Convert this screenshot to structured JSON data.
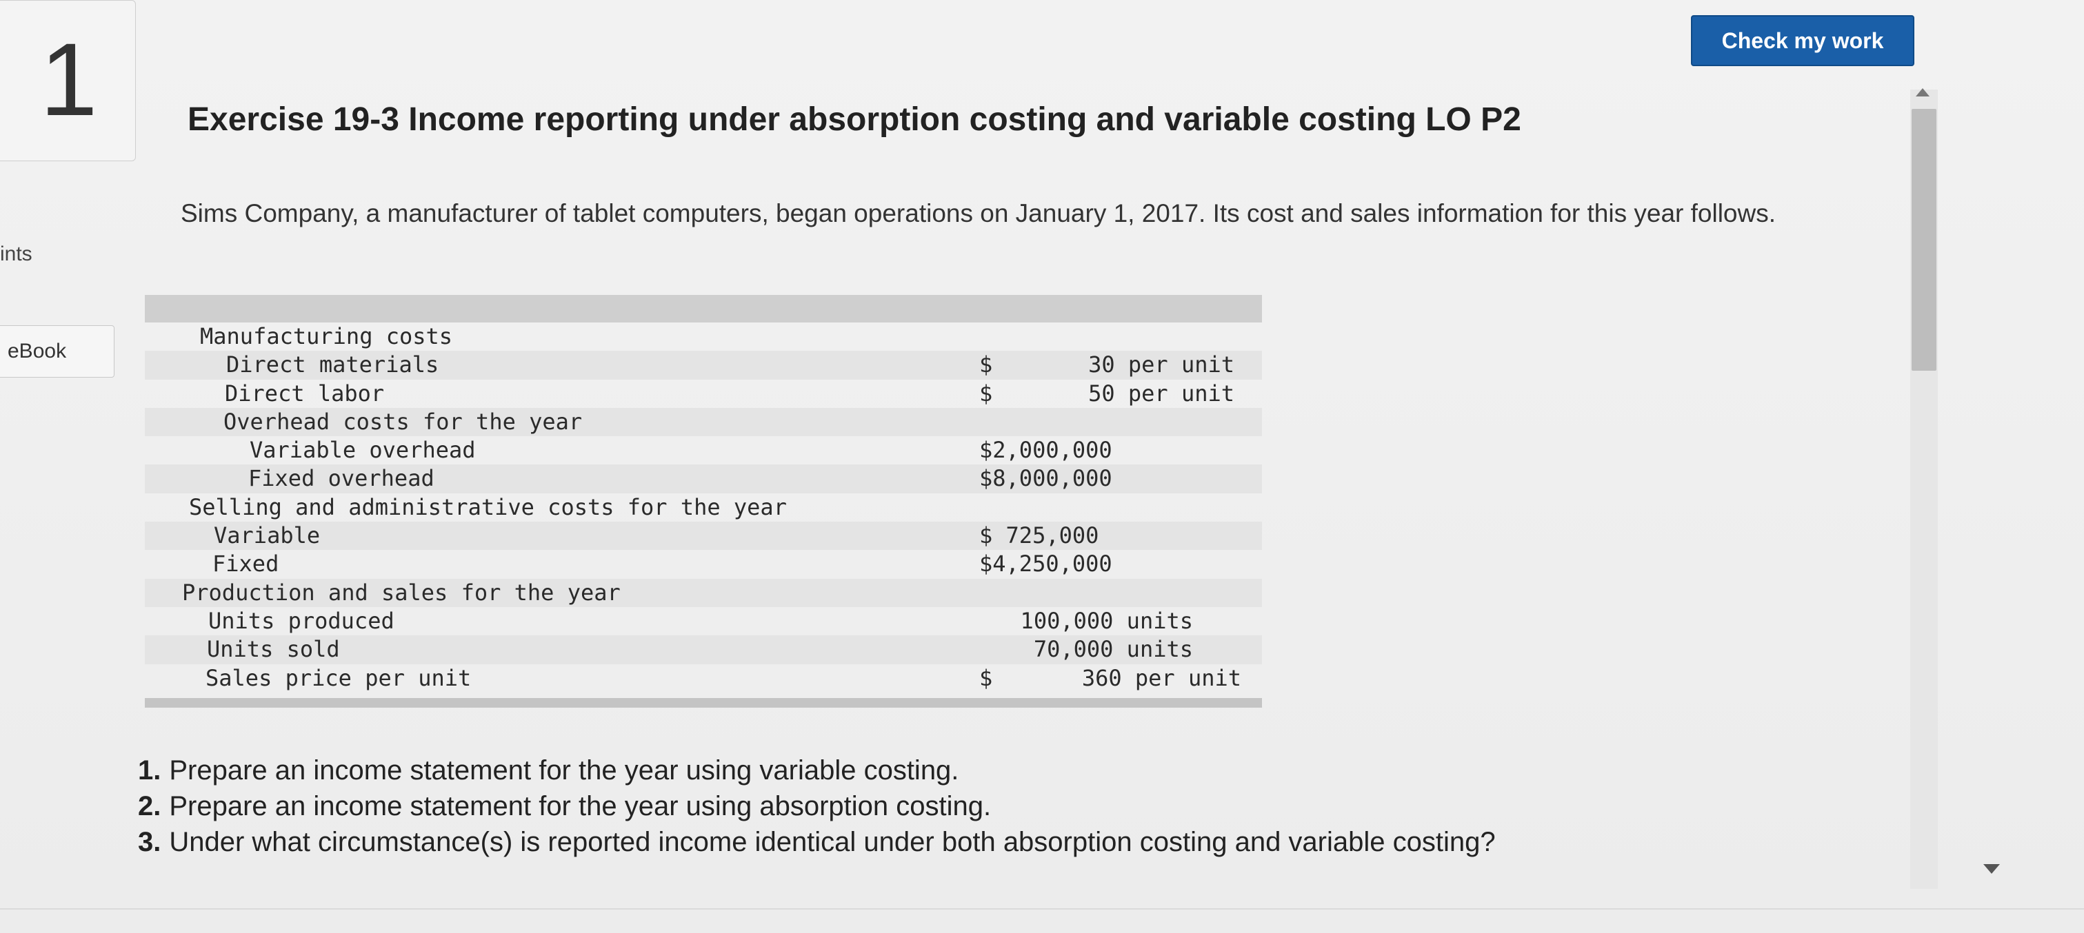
{
  "question": {
    "number": "1"
  },
  "sidebar": {
    "points_label": "ints",
    "ebook_label": "eBook"
  },
  "header": {
    "check_button_label": "Check my work"
  },
  "exercise": {
    "title": "Exercise 19-3 Income reporting under absorption costing and variable costing LO P2",
    "intro": "Sims Company, a manufacturer of tablet computers, began operations on January 1, 2017. Its cost and sales information for this year follows."
  },
  "cost_table": {
    "rows": [
      {
        "label": "Manufacturing costs",
        "dollar": "",
        "value": ""
      },
      {
        "label": "Direct materials",
        "dollar": "$",
        "value": "30 per unit"
      },
      {
        "label": "Direct labor",
        "dollar": "$",
        "value": "50 per unit"
      },
      {
        "label": "Overhead costs for the year",
        "dollar": "",
        "value": ""
      },
      {
        "label": "Variable overhead",
        "dollar": "",
        "value": "$2,000,000"
      },
      {
        "label": "Fixed overhead",
        "dollar": "",
        "value": "$8,000,000"
      },
      {
        "label": "Selling and administrative costs for the year",
        "dollar": "",
        "value": ""
      },
      {
        "label": "Variable",
        "dollar": "",
        "value": "$ 725,000"
      },
      {
        "label": "Fixed",
        "dollar": "",
        "value": "$4,250,000"
      },
      {
        "label": "Production and sales for the year",
        "dollar": "",
        "value": ""
      },
      {
        "label": "Units produced",
        "dollar": "",
        "value": "100,000 units"
      },
      {
        "label": "Units sold",
        "dollar": "",
        "value": "70,000 units"
      },
      {
        "label": "Sales price per unit",
        "dollar": "$",
        "value": "360 per unit"
      }
    ]
  },
  "requirements": [
    {
      "num": "1.",
      "text": "Prepare an income statement for the year using variable costing."
    },
    {
      "num": "2.",
      "text": "Prepare an income statement for the year using absorption costing."
    },
    {
      "num": "3.",
      "text": "Under what circumstance(s) is reported income identical under both absorption costing and variable costing?"
    }
  ]
}
